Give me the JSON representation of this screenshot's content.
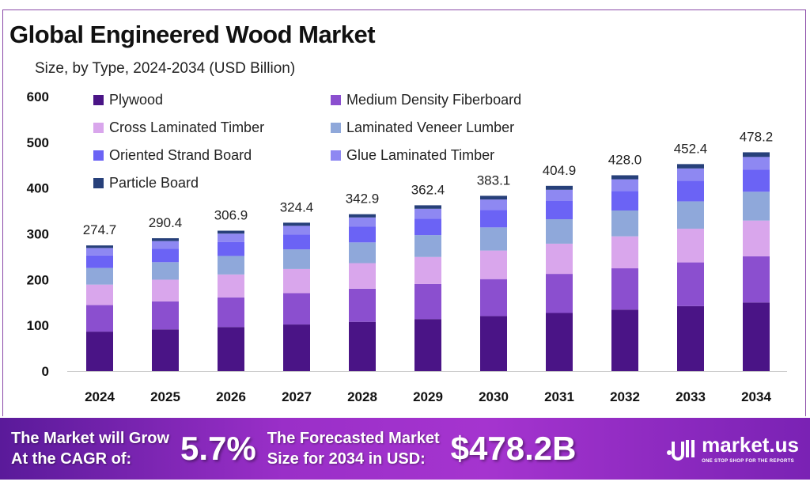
{
  "chart_data": {
    "type": "bar",
    "stacked": true,
    "title": "Global Engineered Wood Market",
    "subtitle": "Size, by Type, 2024-2034 (USD Billion)",
    "xlabel": "",
    "ylabel": "",
    "ylim": [
      0,
      600
    ],
    "yticks": [
      0,
      100,
      200,
      300,
      400,
      500,
      600
    ],
    "grid": false,
    "legend_position": "top-left",
    "categories": [
      "2024",
      "2025",
      "2026",
      "2027",
      "2028",
      "2029",
      "2030",
      "2031",
      "2032",
      "2033",
      "2034"
    ],
    "totals": [
      "274.7",
      "290.4",
      "306.9",
      "324.4",
      "342.9",
      "362.4",
      "383.1",
      "404.9",
      "428.0",
      "452.4",
      "478.2"
    ],
    "series": [
      {
        "name": "Plywood",
        "color": "#4a1486",
        "values": [
          86.3,
          91.2,
          96.4,
          101.9,
          107.7,
          113.8,
          120.3,
          127.1,
          134.4,
          142.1,
          150.0
        ]
      },
      {
        "name": "Medium Density Fiberboard",
        "color": "#8b4fcf",
        "values": [
          58.0,
          61.3,
          64.8,
          68.4,
          72.4,
          76.5,
          80.8,
          85.4,
          90.3,
          95.5,
          101.0
        ]
      },
      {
        "name": "Cross Laminated Timber",
        "color": "#d9a6ec",
        "values": [
          44.8,
          47.3,
          50.0,
          52.9,
          55.9,
          59.1,
          62.4,
          66.0,
          69.8,
          73.7,
          78.0
        ]
      },
      {
        "name": "Laminated Veneer Lumber",
        "color": "#8fa8da",
        "values": [
          36.3,
          38.3,
          40.5,
          42.8,
          45.3,
          47.8,
          50.6,
          53.4,
          56.5,
          59.7,
          63.0
        ]
      },
      {
        "name": "Oriented Strand Board",
        "color": "#6b63f5",
        "values": [
          27.5,
          29.0,
          30.7,
          32.4,
          34.3,
          36.2,
          38.3,
          40.5,
          42.8,
          45.2,
          48.0
        ]
      },
      {
        "name": "Glue Laminated Timber",
        "color": "#8e88f2",
        "values": [
          16.2,
          17.1,
          18.1,
          19.1,
          20.2,
          21.4,
          22.6,
          23.9,
          25.3,
          26.7,
          28.0
        ]
      },
      {
        "name": "Particle Board",
        "color": "#27407a",
        "values": [
          5.6,
          6.2,
          6.4,
          6.9,
          7.1,
          7.6,
          8.1,
          8.6,
          8.9,
          9.5,
          10.2
        ]
      }
    ]
  },
  "banner": {
    "cagr_label_1": "The Market will Grow",
    "cagr_label_2": "At the CAGR of:",
    "cagr_value": "5.7%",
    "forecast_label_1": "The Forecasted Market",
    "forecast_label_2": "Size for 2034 in USD:",
    "forecast_value": "$478.2B",
    "logo_name": "market.us",
    "logo_tagline": "ONE STOP SHOP FOR THE REPORTS"
  }
}
